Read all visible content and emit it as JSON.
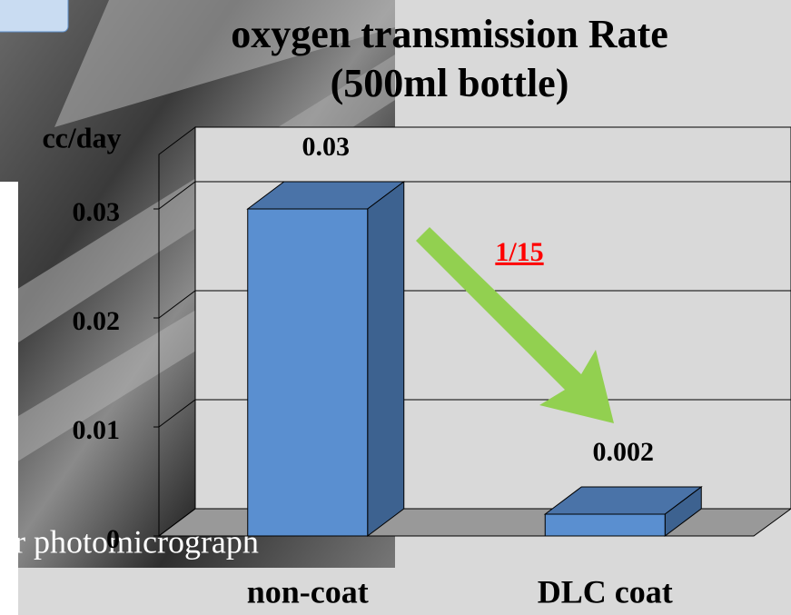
{
  "slide": {
    "caption": "er photomicrograph"
  },
  "chart_data": {
    "type": "bar3d",
    "title": "oxygen transmission Rate",
    "subtitle": "(500ml bottle)",
    "ylabel": "cc/day",
    "annotation": "1/15",
    "categories": [
      "non-coat",
      "DLC coat"
    ],
    "values": [
      0.03,
      0.002
    ],
    "color": "#5a8fd0",
    "ylim": [
      0,
      0.035
    ],
    "yticks": [
      0,
      0.01,
      0.02,
      0.03
    ],
    "grid": true
  }
}
